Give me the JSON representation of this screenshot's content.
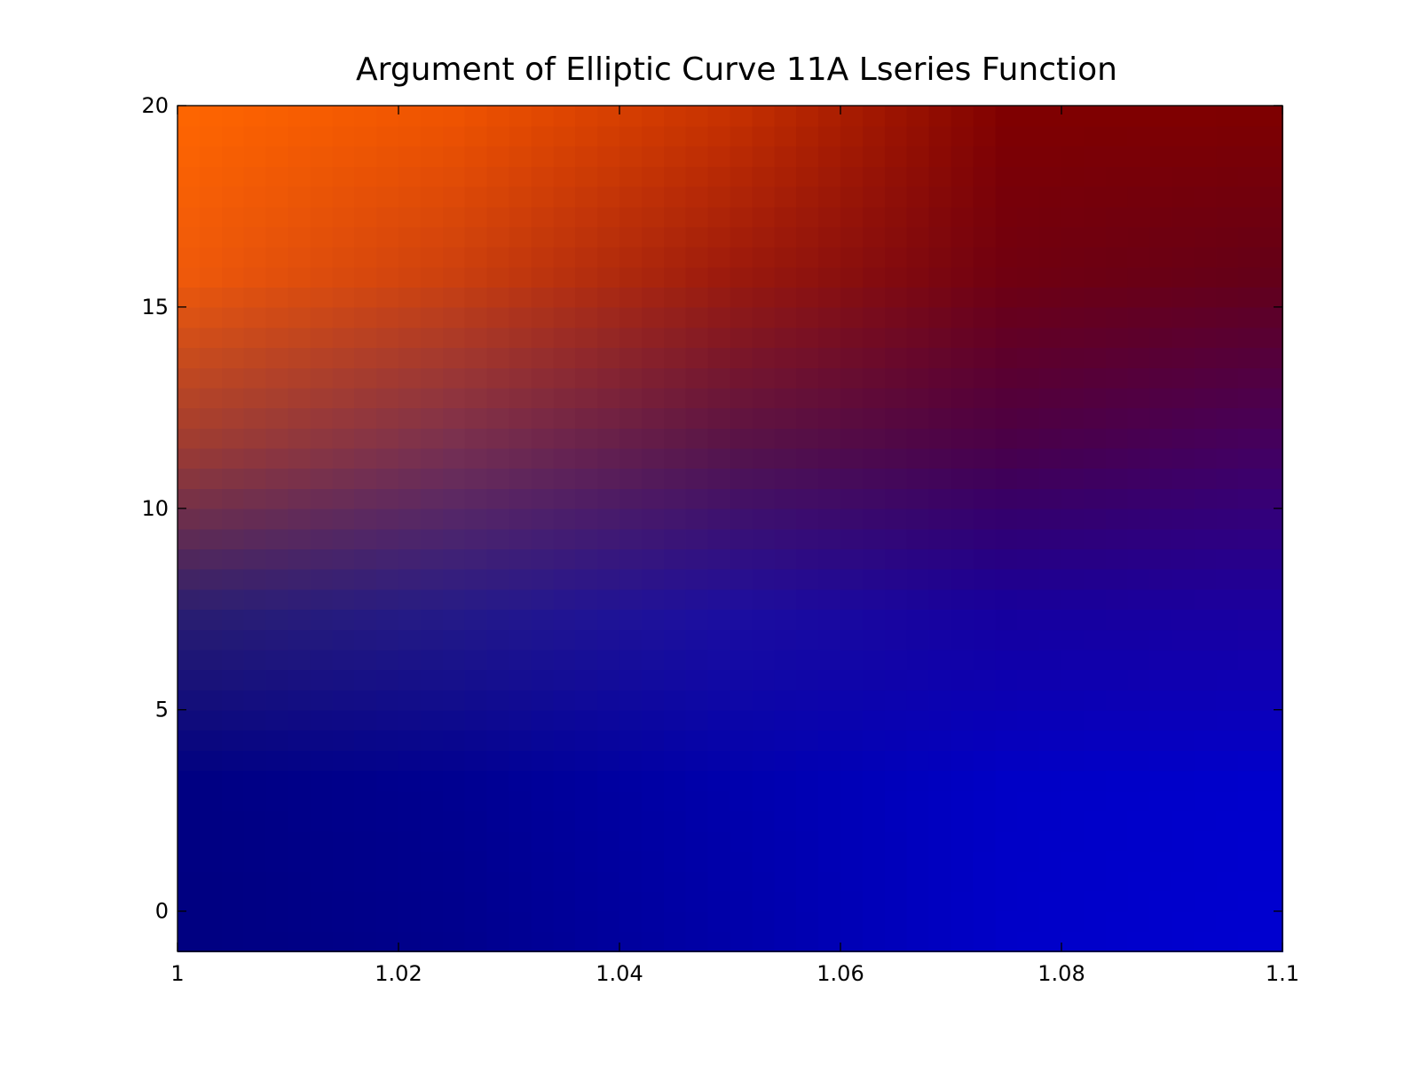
{
  "chart_data": {
    "type": "heatmap",
    "title": "Argument of Elliptic Curve 11A Lseries Function",
    "xlabel": "",
    "ylabel": "",
    "xlim": [
      1.0,
      1.1
    ],
    "ylim": [
      -1,
      20
    ],
    "xticks": [
      "1",
      "1.02",
      "1.04",
      "1.06",
      "1.08",
      "1.1"
    ],
    "xtick_values": [
      1.0,
      1.02,
      1.04,
      1.06,
      1.08,
      1.1
    ],
    "yticks": [
      "0",
      "5",
      "10",
      "15",
      "20"
    ],
    "ytick_values": [
      0,
      5,
      10,
      15,
      20
    ],
    "grid": false,
    "colormap": "hue of the complex argument: blue (lower) through purple to orange / dark red (upper)",
    "x": [
      1.0,
      1.025,
      1.05,
      1.075,
      1.1
    ],
    "y": [
      -1,
      3.2,
      7.4,
      11.6,
      15.8,
      20
    ],
    "cell_colors": [
      [
        "#000080",
        "#00008c",
        "#0000a8",
        "#0000c8",
        "#0000d0"
      ],
      [
        "#000082",
        "#000090",
        "#0000ac",
        "#0000c6",
        "#0000cc"
      ],
      [
        "#2a1e70",
        "#241a88",
        "#1c0ea0",
        "#16009e",
        "#1a00a0"
      ],
      [
        "#a03c30",
        "#783050",
        "#581448",
        "#4a0048",
        "#440060"
      ],
      [
        "#f05a0a",
        "#cc400e",
        "#9c1a0c",
        "#700010",
        "#640018"
      ],
      [
        "#ff6600",
        "#f05400",
        "#c83200",
        "#800000",
        "#800000"
      ]
    ]
  }
}
